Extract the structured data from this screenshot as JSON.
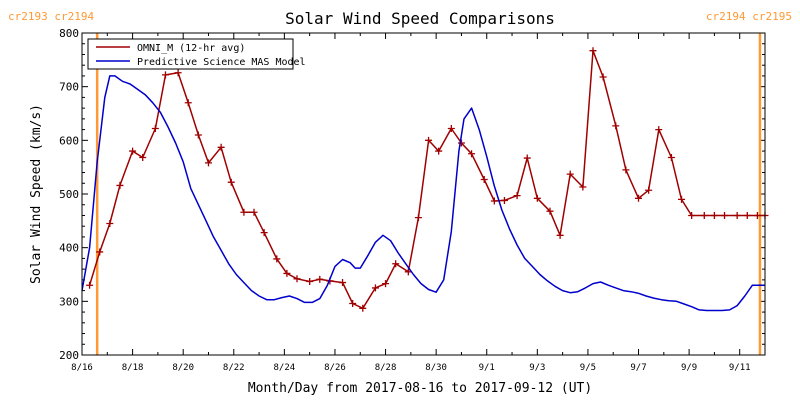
{
  "chart_data": {
    "type": "line",
    "title": "Solar Wind Speed Comparisons",
    "xlabel": "Month/Day from 2017-08-16 to 2017-09-12 (UT)",
    "ylabel": "Solar Wind Speed (km/s)",
    "xlim": [
      16.0,
      43.0
    ],
    "ylim": [
      200,
      800
    ],
    "x_ticks": [
      {
        "x": 16,
        "label": "8/16"
      },
      {
        "x": 18,
        "label": "8/18"
      },
      {
        "x": 20,
        "label": "8/20"
      },
      {
        "x": 22,
        "label": "8/22"
      },
      {
        "x": 24,
        "label": "8/24"
      },
      {
        "x": 26,
        "label": "8/26"
      },
      {
        "x": 28,
        "label": "8/28"
      },
      {
        "x": 30,
        "label": "8/30"
      },
      {
        "x": 32,
        "label": "9/1"
      },
      {
        "x": 34,
        "label": "9/3"
      },
      {
        "x": 36,
        "label": "9/5"
      },
      {
        "x": 38,
        "label": "9/7"
      },
      {
        "x": 40,
        "label": "9/9"
      },
      {
        "x": 42,
        "label": "9/11"
      }
    ],
    "y_ticks": [
      200,
      300,
      400,
      500,
      600,
      700,
      800
    ],
    "legend_position": "top-left",
    "carrington": {
      "left_label": "cr2193 cr2194",
      "right_label": "cr2194 cr2195",
      "boundaries": [
        16.6,
        42.8
      ],
      "color": "#FF9933"
    },
    "series": [
      {
        "name": "OMNI_M (12-hr avg)",
        "color": "#A00000",
        "markers": true,
        "x": [
          16.3,
          16.7,
          17.1,
          17.5,
          18.0,
          18.4,
          18.9,
          19.3,
          19.8,
          20.2,
          20.6,
          21.0,
          21.5,
          21.9,
          22.4,
          22.8,
          23.2,
          23.7,
          24.1,
          24.5,
          25.0,
          25.4,
          25.8,
          26.3,
          26.7,
          27.1,
          27.6,
          28.0,
          28.4,
          28.9,
          29.3,
          29.7,
          30.1,
          30.6,
          31.0,
          31.4,
          31.9,
          32.3,
          32.7,
          33.2,
          33.6,
          34.0,
          34.5,
          34.9,
          35.3,
          35.8,
          36.2,
          36.6,
          37.1,
          37.5,
          38.0,
          38.4,
          38.8,
          39.3,
          39.7,
          40.1,
          40.6,
          41.0,
          41.4,
          41.9,
          42.3,
          42.7,
          43.0
        ],
        "y": [
          330,
          392,
          445,
          516,
          580,
          568,
          622,
          722,
          726,
          670,
          610,
          558,
          587,
          522,
          466,
          466,
          428,
          379,
          352,
          342,
          337,
          341,
          338,
          335,
          296,
          287,
          325,
          333,
          370,
          355,
          456,
          600,
          580,
          622,
          595,
          575,
          527,
          487,
          488,
          497,
          567,
          492,
          468,
          423,
          537,
          513,
          767,
          718,
          627,
          545,
          492,
          507,
          620,
          568,
          490,
          460,
          460,
          460,
          460,
          460,
          460,
          460,
          460
        ]
      },
      {
        "name": "Predictive Science MAS Model",
        "color": "#0000CC",
        "markers": false,
        "x": [
          16.0,
          16.3,
          16.6,
          16.9,
          17.1,
          17.3,
          17.6,
          17.9,
          18.2,
          18.5,
          18.8,
          19.1,
          19.4,
          19.7,
          20.0,
          20.3,
          20.6,
          20.9,
          21.2,
          21.5,
          21.8,
          22.1,
          22.4,
          22.7,
          23.0,
          23.3,
          23.6,
          23.9,
          24.2,
          24.5,
          24.8,
          25.1,
          25.4,
          25.7,
          26.0,
          26.3,
          26.6,
          26.8,
          27.0,
          27.3,
          27.6,
          27.9,
          28.2,
          28.5,
          28.8,
          29.1,
          29.4,
          29.7,
          30.0,
          30.3,
          30.6,
          30.9,
          31.1,
          31.4,
          31.7,
          32.0,
          32.3,
          32.6,
          32.9,
          33.2,
          33.5,
          33.8,
          34.1,
          34.4,
          34.7,
          35.0,
          35.3,
          35.6,
          35.9,
          36.2,
          36.5,
          36.8,
          37.1,
          37.4,
          37.7,
          38.0,
          38.3,
          38.6,
          38.9,
          39.2,
          39.5,
          39.8,
          40.1,
          40.4,
          40.7,
          41.0,
          41.3,
          41.6,
          41.9,
          42.2,
          42.5,
          42.8,
          43.0
        ],
        "y": [
          320,
          400,
          560,
          680,
          720,
          720,
          710,
          705,
          695,
          685,
          670,
          652,
          625,
          595,
          560,
          510,
          480,
          450,
          420,
          395,
          370,
          350,
          335,
          320,
          310,
          303,
          303,
          307,
          310,
          305,
          298,
          298,
          305,
          330,
          365,
          378,
          372,
          362,
          362,
          385,
          410,
          423,
          413,
          390,
          370,
          350,
          333,
          322,
          317,
          340,
          430,
          580,
          640,
          660,
          620,
          570,
          515,
          470,
          435,
          405,
          380,
          365,
          350,
          338,
          328,
          320,
          316,
          318,
          325,
          333,
          336,
          330,
          325,
          320,
          318,
          315,
          310,
          306,
          303,
          301,
          300,
          295,
          290,
          284,
          283,
          283,
          283,
          284,
          292,
          310,
          330,
          330,
          330
        ]
      }
    ]
  }
}
